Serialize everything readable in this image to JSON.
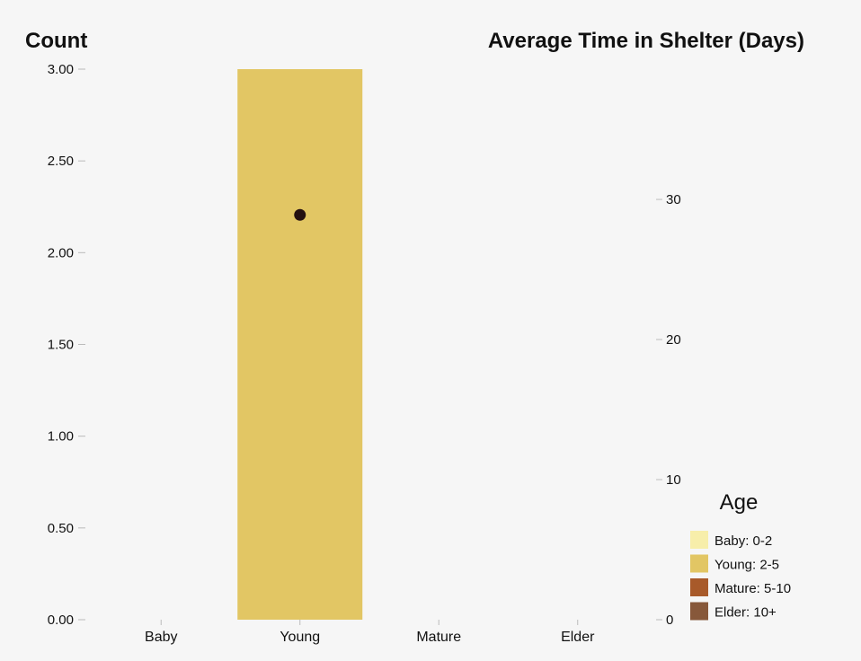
{
  "chart_data": {
    "type": "bar",
    "categories": [
      "Baby",
      "Young",
      "Mature",
      "Elder"
    ],
    "series": [
      {
        "values": [
          0,
          3,
          0,
          0
        ],
        "colors": [
          "#f7eeaa",
          "#e2c664",
          "#a85a2a",
          "#87583a"
        ]
      },
      {
        "type": "scatter",
        "axis": "right",
        "values": [
          null,
          28.9,
          null,
          null
        ],
        "color": "#241010"
      }
    ],
    "y_left": {
      "title": "Count",
      "ylim": [
        0,
        3
      ],
      "ticks": [
        0,
        0.5,
        1,
        1.5,
        2,
        2.5,
        3
      ],
      "tick_labels": [
        "0.00",
        "0.50",
        "1.00",
        "1.50",
        "2.00",
        "2.50",
        "3.00"
      ]
    },
    "y_right": {
      "title": "Average Time in Shelter (Days)",
      "ylim": [
        0,
        39.3
      ],
      "ticks": [
        0,
        10,
        20,
        30
      ],
      "tick_labels": [
        "0",
        "10",
        "20",
        "30"
      ]
    },
    "grid": false,
    "legend": {
      "title": "Age",
      "placement": "bottom-right",
      "items": [
        {
          "label": "Baby: 0-2",
          "color": "#f7eeaa"
        },
        {
          "label": "Young: 2-5",
          "color": "#e2c664"
        },
        {
          "label": "Mature: 5-10",
          "color": "#a85a2a"
        },
        {
          "label": "Elder: 10+",
          "color": "#87583a"
        }
      ]
    }
  }
}
